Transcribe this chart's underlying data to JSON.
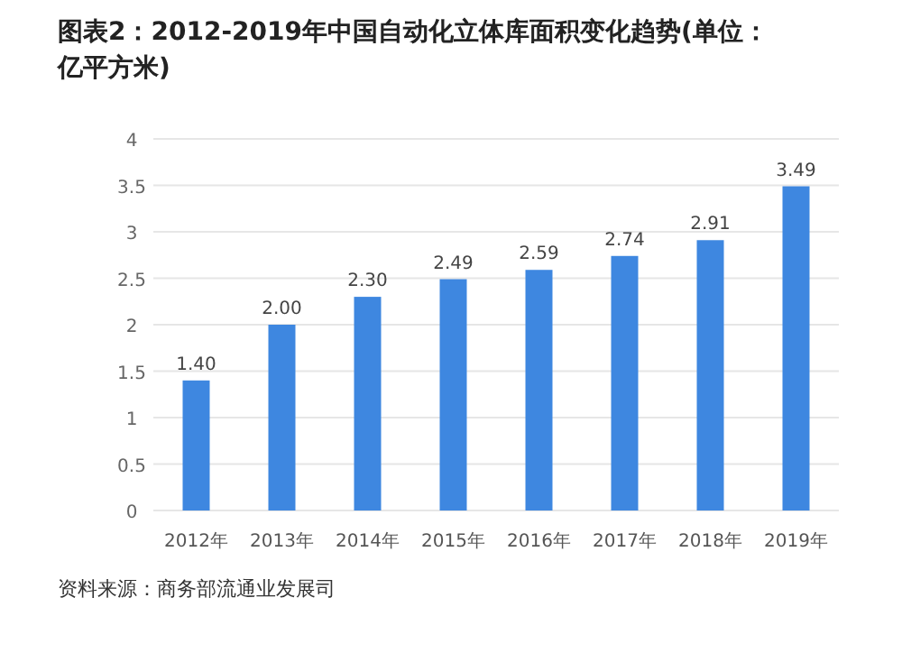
{
  "chart_data": {
    "type": "bar",
    "title": "图表2：2012-2019年中国自动化立体库面积变化趋势(单位：亿平方米)",
    "categories": [
      "2012年",
      "2013年",
      "2014年",
      "2015年",
      "2016年",
      "2017年",
      "2018年",
      "2019年"
    ],
    "values": [
      1.4,
      2.0,
      2.3,
      2.49,
      2.59,
      2.74,
      2.91,
      3.49
    ],
    "value_labels": [
      "1.40",
      "2.00",
      "2.30",
      "2.49",
      "2.59",
      "2.74",
      "2.91",
      "3.49"
    ],
    "color": "#3e87e0",
    "ylim": [
      0,
      4
    ],
    "yticks": [
      0,
      0.5,
      1,
      1.5,
      2,
      2.5,
      3,
      3.5,
      4
    ],
    "grid": "y",
    "annotations": [
      "资料来源：商务部流通业发展司"
    ]
  }
}
